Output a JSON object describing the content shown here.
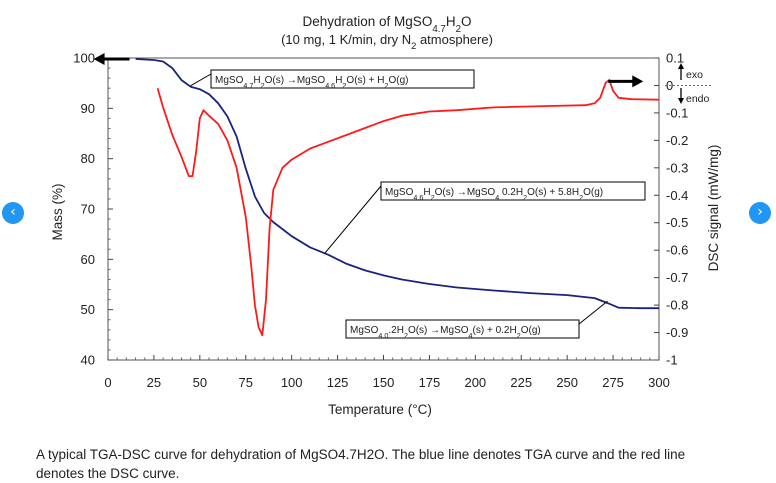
{
  "chart_data": {
    "type": "line",
    "title": "Dehydration of MgSO4.7H2O",
    "subtitle": "(10 mg, 1 K/min, dry N2 atmosphere)",
    "xlabel": "Temperature (°C)",
    "ylabel_left": "Mass (%)",
    "ylabel_right": "DSC signal (mW/mg)",
    "xlim": [
      0,
      300
    ],
    "ylim_left": [
      40,
      100
    ],
    "ylim_right": [
      -1,
      0.1
    ],
    "x_ticks": [
      "0",
      "25",
      "50",
      "75",
      "100",
      "125",
      "150",
      "175",
      "200",
      "225",
      "250",
      "275",
      "300"
    ],
    "y_left_ticks": [
      "40",
      "50",
      "60",
      "70",
      "80",
      "90",
      "100"
    ],
    "y_right_ticks": [
      "0.1",
      "0",
      "-0.1",
      "-0.2",
      "-0.3",
      "-0.4",
      "-0.5",
      "-0.6",
      "-0.7",
      "-0.8",
      "-0.9",
      "-1"
    ],
    "exo_label": "exo",
    "endo_label": "endo",
    "series": [
      {
        "name": "TGA",
        "axis": "left",
        "color": "#1a237e",
        "points": [
          [
            15,
            99.8
          ],
          [
            25,
            99.6
          ],
          [
            30,
            99.3
          ],
          [
            35,
            98.0
          ],
          [
            40,
            95.6
          ],
          [
            45,
            94.3
          ],
          [
            50,
            93.8
          ],
          [
            55,
            92.8
          ],
          [
            60,
            91.0
          ],
          [
            65,
            88.4
          ],
          [
            70,
            84.4
          ],
          [
            75,
            78.0
          ],
          [
            80,
            72.5
          ],
          [
            85,
            69.2
          ],
          [
            90,
            67.4
          ],
          [
            95,
            66.0
          ],
          [
            100,
            64.6
          ],
          [
            110,
            62.4
          ],
          [
            120,
            60.9
          ],
          [
            130,
            59.1
          ],
          [
            140,
            57.8
          ],
          [
            150,
            56.8
          ],
          [
            160,
            56.0
          ],
          [
            175,
            55.1
          ],
          [
            190,
            54.4
          ],
          [
            210,
            53.8
          ],
          [
            230,
            53.3
          ],
          [
            250,
            52.9
          ],
          [
            265,
            52.3
          ],
          [
            272,
            51.3
          ],
          [
            278,
            50.4
          ],
          [
            290,
            50.3
          ],
          [
            300,
            50.3
          ]
        ]
      },
      {
        "name": "DSC",
        "axis": "right",
        "color": "#ff1a1a",
        "points": [
          [
            27,
            -0.01
          ],
          [
            30,
            -0.08
          ],
          [
            35,
            -0.18
          ],
          [
            40,
            -0.26
          ],
          [
            44,
            -0.33
          ],
          [
            46,
            -0.33
          ],
          [
            48,
            -0.24
          ],
          [
            50,
            -0.12
          ],
          [
            52,
            -0.09
          ],
          [
            55,
            -0.11
          ],
          [
            60,
            -0.14
          ],
          [
            65,
            -0.2
          ],
          [
            70,
            -0.3
          ],
          [
            75,
            -0.48
          ],
          [
            78,
            -0.66
          ],
          [
            80,
            -0.8
          ],
          [
            82,
            -0.88
          ],
          [
            84,
            -0.91
          ],
          [
            86,
            -0.78
          ],
          [
            88,
            -0.52
          ],
          [
            90,
            -0.38
          ],
          [
            95,
            -0.3
          ],
          [
            100,
            -0.27
          ],
          [
            110,
            -0.23
          ],
          [
            120,
            -0.205
          ],
          [
            130,
            -0.18
          ],
          [
            140,
            -0.155
          ],
          [
            150,
            -0.13
          ],
          [
            160,
            -0.11
          ],
          [
            175,
            -0.095
          ],
          [
            190,
            -0.09
          ],
          [
            210,
            -0.08
          ],
          [
            240,
            -0.075
          ],
          [
            260,
            -0.072
          ],
          [
            265,
            -0.065
          ],
          [
            268,
            -0.045
          ],
          [
            271,
            0.01
          ],
          [
            273,
            0.02
          ],
          [
            275,
            -0.02
          ],
          [
            278,
            -0.045
          ],
          [
            285,
            -0.05
          ],
          [
            300,
            -0.052
          ]
        ]
      }
    ],
    "annotations": [
      "MgSO4.7H2O(s) →MgSO4.6H2O(s) + H2O(g)",
      "MgSO4.6H2O(s) →MgSO4 0.2H2O(s) + 5.8H2O(g)",
      "MgSO4.0.2H2O(s) →MgSO4(s) + 0.2H2O(g)"
    ]
  },
  "caption": "A typical TGA-DSC curve for dehydration of MgSO4.7H2O. The blue line denotes TGA curve and the red line denotes the DSC curve.",
  "nav": {
    "prev_symbol": "‹",
    "next_symbol": "›"
  }
}
